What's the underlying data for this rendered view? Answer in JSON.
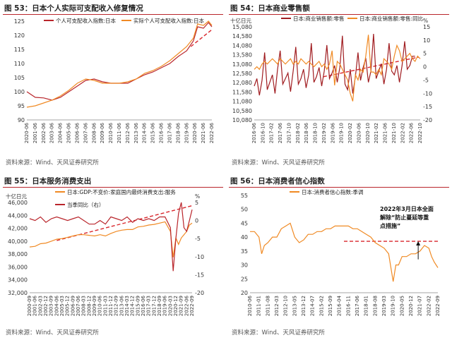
{
  "colors": {
    "red": "#b9252b",
    "orange": "#f08a24",
    "darkred": "#a01c20"
  },
  "panels": [
    {
      "title": "图 53：日本个人实际可支配收入修复情况",
      "source": "资料来源：Wind、天风证券研究所"
    },
    {
      "title": "图 54：日本商业零售额",
      "source": "资料来源：Wind、天风证券研究所"
    },
    {
      "title": "图 55：日本服务消费支出",
      "source": "资料来源：Wind、天风证券研究所"
    },
    {
      "title": "图 56：日本消费者信心指数",
      "source": "资料来源：Wind、天风证券研究所"
    }
  ],
  "chart_data": [
    {
      "type": "line",
      "legend": [
        "个人可支配收入指数:日本",
        "实际个人可支配收入指数:日本"
      ],
      "ylim": [
        90,
        125
      ],
      "yticks": [
        "125",
        "120",
        "115",
        "110",
        "105",
        "100",
        "95",
        "90"
      ],
      "x_ticks": [
        "2020-06",
        "2001-06",
        "2002-06",
        "2003-06",
        "2004-06",
        "2005-06",
        "2006-06",
        "2007-06",
        "2008-06",
        "2009-06",
        "2010-06",
        "2011-06",
        "2012-06",
        "2013-06",
        "2014-06",
        "2015-06",
        "2016-06",
        "2017-06",
        "2018-06",
        "2019-06",
        "2020-06",
        "2021-06",
        "2022-06"
      ],
      "series": [
        {
          "name": "个人可支配收入指数:日本",
          "color": "#b9252b",
          "x": [
            0,
            1,
            2,
            3,
            4,
            5,
            6,
            7,
            8,
            9,
            10,
            11,
            12,
            13,
            14,
            15,
            16,
            17,
            18,
            19,
            19.8,
            20.3,
            21,
            21.6,
            22
          ],
          "values": [
            100,
            98,
            97.8,
            97,
            98,
            100,
            102,
            104,
            104.5,
            103.5,
            103,
            103,
            103,
            104.5,
            106,
            107,
            108.5,
            110,
            112.5,
            114.5,
            118,
            123,
            122.5,
            124.5,
            123
          ]
        },
        {
          "name": "实际个人可支配收入指数:日本",
          "color": "#f08a24",
          "x": [
            0,
            1,
            2,
            3,
            4,
            5,
            6,
            7,
            8,
            9,
            10,
            11,
            12,
            13,
            14,
            15,
            16,
            17,
            18,
            19,
            19.8,
            20.3,
            21,
            21.6,
            22
          ],
          "values": [
            94.5,
            95,
            96,
            97,
            98.5,
            100.5,
            103,
            104.5,
            104,
            103,
            103,
            103,
            103.5,
            104.5,
            106.5,
            107.5,
            109,
            111,
            113.5,
            116,
            119,
            124,
            123.5,
            125,
            123.5
          ]
        }
      ],
      "trend": {
        "x": [
          19.5,
          22
        ],
        "values": [
          116,
          122
        ]
      }
    },
    {
      "type": "line",
      "legend": [
        "日本:商业销售额:零售",
        "日本:商业销售额:零售:同比"
      ],
      "yunit": "十亿日元",
      "y2unit": "%",
      "ylim": [
        10080,
        15080
      ],
      "yticks": [
        "15,080",
        "14,580",
        "14,080",
        "13,580",
        "13,080",
        "12,580",
        "12,080",
        "11,580",
        "11,080",
        "10,580",
        "10,080"
      ],
      "y2lim": [
        -20,
        15
      ],
      "y2ticks": [
        "15",
        "10",
        "5",
        "0",
        "-5",
        "-10",
        "-15",
        "-20"
      ],
      "x_ticks": [
        "2016-06",
        "2016-10",
        "2017-02",
        "2017-06",
        "2017-10",
        "2018-02",
        "2018-06",
        "2018-10",
        "2019-02",
        "2019-06",
        "2019-10",
        "2020-02",
        "2020-06",
        "2020-10",
        "2021-02",
        "2021-06",
        "2021-10",
        "2022-02",
        "2022-06",
        "2022-10"
      ],
      "series": [
        {
          "name": "日本:商业销售额:零售",
          "color": "#a01c20",
          "axis": "left",
          "x": [
            0,
            0.3,
            0.6,
            0.9,
            1.2,
            1.5,
            1.8,
            2.1,
            2.4,
            2.7,
            3,
            3.3,
            3.6,
            3.9,
            4.2,
            4.5,
            4.8,
            5.1,
            5.4,
            5.7,
            6,
            6.3,
            6.6,
            6.9,
            7.2,
            7.5,
            7.8,
            8.1,
            8.4,
            8.7,
            9,
            9.3,
            9.6,
            9.9,
            10.2,
            10.5,
            10.8,
            11.1,
            11.4,
            11.7,
            12,
            12.3,
            12.6,
            12.9,
            13.2,
            13.5,
            13.8,
            14.1,
            14.4,
            14.7,
            15,
            15.3,
            15.6,
            15.9,
            16.2,
            16.5,
            16.8,
            17.1,
            17.4,
            17.7,
            18,
            18.3,
            18.6
          ],
          "values": [
            11900,
            12300,
            11400,
            12200,
            13700,
            11700,
            12100,
            12500,
            11500,
            12800,
            13800,
            12000,
            12300,
            12600,
            11600,
            12700,
            14000,
            12000,
            12300,
            12800,
            11800,
            12500,
            14200,
            12100,
            12400,
            12900,
            11900,
            12700,
            14100,
            12300,
            12600,
            13000,
            12100,
            12900,
            14600,
            12000,
            11700,
            12800,
            11500,
            12400,
            13700,
            12200,
            12900,
            13400,
            12100,
            12700,
            14700,
            12300,
            12700,
            13100,
            12000,
            12800,
            14200,
            12700,
            12500,
            13000,
            12100,
            13000,
            14300,
            12800,
            13000,
            13500,
            13500
          ]
        },
        {
          "name": "日本:商业销售额:零售:同比",
          "color": "#f08a24",
          "axis": "right",
          "x": [
            0,
            0.3,
            0.6,
            0.9,
            1.2,
            1.5,
            1.8,
            2.1,
            2.4,
            2.7,
            3,
            3.3,
            3.6,
            3.9,
            4.2,
            4.5,
            4.8,
            5.1,
            5.4,
            5.7,
            6,
            6.3,
            6.6,
            6.9,
            7.2,
            7.5,
            7.8,
            8.1,
            8.4,
            8.7,
            9,
            9.3,
            9.6,
            9.9,
            10.2,
            10.5,
            10.8,
            11.1,
            11.4,
            11.7,
            12,
            12.3,
            12.6,
            12.9,
            13.2,
            13.5,
            13.8,
            14.1,
            14.4,
            14.7,
            15,
            15.3,
            15.6,
            15.9,
            16.2,
            16.5,
            16.8,
            17.1,
            17.4,
            17.7,
            18,
            18.3,
            18.6,
            18.9,
            19.2
          ],
          "values": [
            -1,
            0,
            -1,
            1,
            2,
            1,
            2,
            3,
            2,
            1,
            3,
            2,
            1,
            2,
            3,
            1,
            2,
            1,
            3,
            2,
            1,
            2,
            1,
            0,
            1,
            2,
            0,
            1,
            -1,
            1,
            6,
            -7,
            2,
            1,
            -1,
            -3,
            -5,
            -10,
            -13,
            -3,
            -5,
            -1,
            -2,
            4,
            12,
            -2,
            -2,
            -3,
            -1,
            -3,
            3,
            2,
            1,
            -1,
            4,
            8,
            6,
            2,
            3,
            4,
            5,
            3,
            2,
            4,
            3
          ]
        }
      ],
      "trend": {
        "axis": "left",
        "x": [
          8,
          19
        ],
        "values": [
          12400,
          13450
        ]
      }
    },
    {
      "type": "line",
      "legend": [
        "日本:GDP:不变价:家庭国内最终消费支出:服务",
        "当季同比（右）"
      ],
      "yunit": "十亿日元",
      "y2unit": "%",
      "ylim": [
        32000,
        46000
      ],
      "yticks": [
        "46,000",
        "44,000",
        "42,000",
        "40,000",
        "38,000",
        "36,000",
        "34,000",
        "32,000"
      ],
      "y2lim": [
        -20,
        5
      ],
      "y2ticks": [
        "5",
        "0",
        "-5",
        "-10",
        "-15",
        "-20"
      ],
      "x_ticks": [
        "2000-09",
        "2001-06",
        "2002-03",
        "2002-12",
        "2003-09",
        "2004-06",
        "2005-03",
        "2005-12",
        "2006-09",
        "2007-06",
        "2008-03",
        "2008-12",
        "2009-09",
        "2010-06",
        "2011-03",
        "2011-12",
        "2012-09",
        "2013-06",
        "2014-03",
        "2014-12",
        "2015-09",
        "2016-06",
        "2017-03",
        "2017-12",
        "2018-09",
        "2019-06",
        "2020-03",
        "2020-12",
        "2021-09",
        "2022-06",
        "2022-09"
      ],
      "series": [
        {
          "name": "日本:GDP:不变价:家庭国内最终消费支出:服务",
          "color": "#f08a24",
          "axis": "left",
          "x": [
            0,
            1,
            2,
            3,
            4,
            5,
            6,
            7,
            8,
            9,
            10,
            11,
            12,
            13,
            14,
            15,
            16,
            17,
            18,
            19,
            20,
            21,
            22,
            23,
            24,
            25,
            26,
            26.5,
            27,
            27.5,
            28,
            28.5,
            29,
            29.5,
            30
          ],
          "values": [
            39100,
            39200,
            39600,
            39700,
            40000,
            40300,
            40400,
            40600,
            40800,
            41000,
            41000,
            40900,
            40800,
            41000,
            40800,
            41200,
            41500,
            41700,
            41800,
            41800,
            42200,
            42300,
            42500,
            42600,
            42800,
            43000,
            41500,
            37500,
            40500,
            39500,
            40500,
            41000,
            41500,
            42500,
            42800
          ]
        },
        {
          "name": "当季同比（右）",
          "color": "#b9252b",
          "axis": "right",
          "x": [
            0,
            1,
            2,
            3,
            4,
            5,
            6,
            7,
            8,
            9,
            10,
            11,
            12,
            13,
            14,
            15,
            16,
            17,
            18,
            19,
            20,
            21,
            22,
            23,
            24,
            25,
            26,
            26.5,
            27,
            27.5,
            28,
            28.5,
            29,
            29.5,
            30
          ],
          "values": [
            0.5,
            0,
            1,
            -0.5,
            0.5,
            1,
            0.5,
            0,
            0.5,
            1,
            0,
            -1,
            -1,
            0,
            -1,
            1,
            0.5,
            0,
            1,
            -0.5,
            0.5,
            0,
            0.5,
            0,
            1,
            1,
            -2,
            -14,
            -5,
            2,
            5,
            -2,
            -3,
            0,
            3
          ]
        }
      ],
      "trend": {
        "axis": "left",
        "x": [
          5,
          30
        ],
        "values": [
          40100,
          45500
        ]
      }
    },
    {
      "type": "line",
      "legend": [
        "日本:消费者信心指数:季调"
      ],
      "ylim": [
        20,
        55
      ],
      "yticks": [
        "55",
        "50",
        "45",
        "40",
        "35",
        "30",
        "25",
        "20"
      ],
      "annotation": "2022年3月日本全面解除“防止蔓延等重点措施”",
      "x_ticks": [
        "2010-06",
        "2011-01",
        "2011-08",
        "2012-03",
        "2012-10",
        "2013-05",
        "2013-12",
        "2014-07",
        "2015-02",
        "2015-09",
        "2016-04",
        "2016-11",
        "2017-06",
        "2018-01",
        "2018-08",
        "2019-03",
        "2019-10",
        "2020-05",
        "2020-12",
        "2021-07",
        "2022-02",
        "2022-09"
      ],
      "series": [
        {
          "name": "日本:消费者信心指数:季调",
          "color": "#f08a24",
          "x": [
            0,
            0.5,
            1,
            1.3,
            1.6,
            2,
            2.5,
            3,
            3.5,
            4,
            4.5,
            5,
            5.5,
            6,
            6.5,
            7,
            7.5,
            8,
            8.5,
            9,
            9.5,
            10,
            10.5,
            11,
            11.5,
            12,
            12.5,
            13,
            13.5,
            14,
            14.5,
            15,
            15.5,
            16,
            16.3,
            16.6,
            17,
            17.5,
            18,
            18.5,
            19,
            19.5,
            20,
            20.3,
            20.6,
            21
          ],
          "values": [
            42,
            42,
            40,
            34,
            37,
            38,
            40,
            40,
            43,
            44,
            45,
            40,
            38,
            39,
            41,
            41,
            42,
            42,
            43,
            43,
            44,
            44,
            44,
            44,
            43,
            43,
            42,
            41,
            40,
            38,
            37,
            36,
            34,
            24,
            30,
            30,
            33,
            33,
            34,
            34,
            35,
            37,
            36,
            33,
            31,
            29
          ]
        }
      ],
      "reference": {
        "x": [
          10.5,
          21
        ],
        "values": [
          38.5,
          38.5
        ]
      },
      "arrow": {
        "x": 18.8,
        "from": 32,
        "to": 38.5
      }
    }
  ]
}
